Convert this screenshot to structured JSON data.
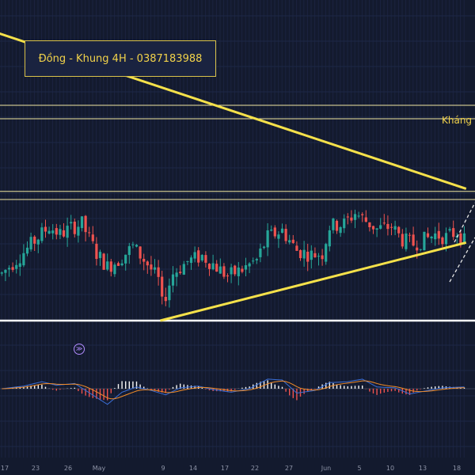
{
  "header": {
    "title": "Đồng - Khung 4H - 0387183988"
  },
  "annotations": {
    "resistance_label": "Kháng"
  },
  "icons": {
    "replay": "replay-icon",
    "replay_glyph": "≫"
  },
  "colors": {
    "background": "#131a2e",
    "up_candle": "#26a69a",
    "down_candle": "#ef5350",
    "trendline": "#f5e14a",
    "level_line": "#f0e6a0",
    "support_line": "#ffffff",
    "macd_line": "#3b6fd8",
    "signal_line": "#f28c28"
  },
  "chart_data": {
    "type": "candlestick",
    "title": "Đồng - Khung 4H - 0387183988",
    "x_tick_labels": [
      "17",
      "23",
      "26",
      "May",
      "9",
      "14",
      "17",
      "22",
      "27",
      "Jun",
      "5",
      "10",
      "13",
      "18"
    ],
    "y_scale": "unlabeled",
    "series_profile": [
      {
        "x": 0,
        "close": 0.35
      },
      {
        "x": 5,
        "close": 0.48
      },
      {
        "x": 10,
        "close": 0.62
      },
      {
        "x": 13,
        "close": 0.7
      },
      {
        "x": 16,
        "close": 0.64
      },
      {
        "x": 19,
        "close": 0.69
      },
      {
        "x": 22,
        "close": 0.72
      },
      {
        "x": 26,
        "close": 0.5
      },
      {
        "x": 29,
        "close": 0.4
      },
      {
        "x": 32,
        "close": 0.45
      },
      {
        "x": 36,
        "close": 0.55
      },
      {
        "x": 40,
        "close": 0.42
      },
      {
        "x": 43,
        "close": 0.3
      },
      {
        "x": 44,
        "close": 0.12
      },
      {
        "x": 47,
        "close": 0.35
      },
      {
        "x": 51,
        "close": 0.44
      },
      {
        "x": 55,
        "close": 0.48
      },
      {
        "x": 58,
        "close": 0.42
      },
      {
        "x": 62,
        "close": 0.33
      },
      {
        "x": 66,
        "close": 0.38
      },
      {
        "x": 70,
        "close": 0.45
      },
      {
        "x": 73,
        "close": 0.62
      },
      {
        "x": 77,
        "close": 0.67
      },
      {
        "x": 81,
        "close": 0.52
      },
      {
        "x": 85,
        "close": 0.49
      },
      {
        "x": 88,
        "close": 0.5
      },
      {
        "x": 90,
        "close": 0.7
      },
      {
        "x": 94,
        "close": 0.72
      },
      {
        "x": 97,
        "close": 0.8
      },
      {
        "x": 100,
        "close": 0.74
      },
      {
        "x": 103,
        "close": 0.68
      },
      {
        "x": 107,
        "close": 0.7
      },
      {
        "x": 110,
        "close": 0.6
      },
      {
        "x": 113,
        "close": 0.57
      },
      {
        "x": 116,
        "close": 0.6
      },
      {
        "x": 119,
        "close": 0.64
      },
      {
        "x": 122,
        "close": 0.62
      },
      {
        "x": 125,
        "close": 0.66
      },
      {
        "x": 127,
        "close": 0.59
      }
    ],
    "levels": [
      {
        "name": "resistance-upper",
        "value": 1.6
      },
      {
        "name": "resistance-lower",
        "value": 1.5
      },
      {
        "name": "range-top-upper",
        "value": 0.96
      },
      {
        "name": "range-top-lower",
        "value": 0.9
      },
      {
        "name": "support",
        "value": 0.0
      }
    ],
    "trendlines": [
      {
        "name": "descending-resistance",
        "from": [
          -2,
          2.15
        ],
        "to": [
          128,
          0.98
        ]
      },
      {
        "name": "ascending-support",
        "from": [
          44,
          0.0
        ],
        "to": [
          128,
          0.58
        ]
      }
    ],
    "macd": {
      "series": [
        "MACD",
        "Signal",
        "Histogram"
      ],
      "profile": [
        {
          "x": 0,
          "v": 0.0
        },
        {
          "x": 6,
          "v": 0.15
        },
        {
          "x": 11,
          "v": 0.4
        },
        {
          "x": 15,
          "v": 0.2
        },
        {
          "x": 20,
          "v": 0.3
        },
        {
          "x": 26,
          "v": -0.5
        },
        {
          "x": 29,
          "v": -0.9
        },
        {
          "x": 33,
          "v": -0.2
        },
        {
          "x": 37,
          "v": 0.1
        },
        {
          "x": 41,
          "v": -0.1
        },
        {
          "x": 45,
          "v": -0.35
        },
        {
          "x": 49,
          "v": 0.05
        },
        {
          "x": 54,
          "v": 0.15
        },
        {
          "x": 58,
          "v": -0.05
        },
        {
          "x": 63,
          "v": -0.2
        },
        {
          "x": 68,
          "v": 0.0
        },
        {
          "x": 73,
          "v": 0.55
        },
        {
          "x": 77,
          "v": 0.5
        },
        {
          "x": 81,
          "v": -0.25
        },
        {
          "x": 86,
          "v": -0.1
        },
        {
          "x": 90,
          "v": 0.35
        },
        {
          "x": 95,
          "v": 0.4
        },
        {
          "x": 99,
          "v": 0.55
        },
        {
          "x": 103,
          "v": 0.1
        },
        {
          "x": 108,
          "v": 0.05
        },
        {
          "x": 112,
          "v": -0.3
        },
        {
          "x": 117,
          "v": -0.1
        },
        {
          "x": 121,
          "v": 0.05
        },
        {
          "x": 127,
          "v": 0.1
        }
      ]
    }
  }
}
